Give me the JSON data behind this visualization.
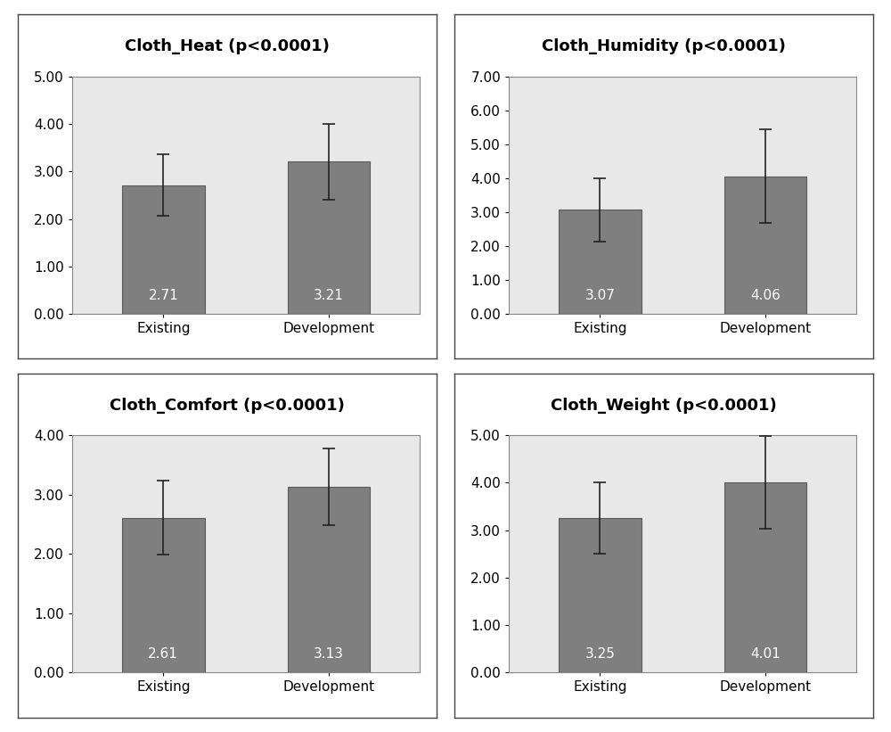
{
  "subplots": [
    {
      "title": "Cloth_Heat (p<0.0001)",
      "categories": [
        "Existing",
        "Development"
      ],
      "values": [
        2.71,
        3.21
      ],
      "errors": [
        0.65,
        0.8
      ],
      "ylim": [
        0,
        5.0
      ],
      "yticks": [
        0.0,
        1.0,
        2.0,
        3.0,
        4.0,
        5.0
      ]
    },
    {
      "title": "Cloth_Humidity (p<0.0001)",
      "categories": [
        "Existing",
        "Development"
      ],
      "values": [
        3.07,
        4.06
      ],
      "errors": [
        0.93,
        1.38
      ],
      "ylim": [
        0,
        7.0
      ],
      "yticks": [
        0.0,
        1.0,
        2.0,
        3.0,
        4.0,
        5.0,
        6.0,
        7.0
      ]
    },
    {
      "title": "Cloth_Comfort (p<0.0001)",
      "categories": [
        "Existing",
        "Development"
      ],
      "values": [
        2.61,
        3.13
      ],
      "errors": [
        0.62,
        0.65
      ],
      "ylim": [
        0,
        4.0
      ],
      "yticks": [
        0.0,
        1.0,
        2.0,
        3.0,
        4.0
      ]
    },
    {
      "title": "Cloth_Weight (p<0.0001)",
      "categories": [
        "Existing",
        "Development"
      ],
      "values": [
        3.25,
        4.01
      ],
      "errors": [
        0.75,
        0.98
      ],
      "ylim": [
        0,
        5.0
      ],
      "yticks": [
        0.0,
        1.0,
        2.0,
        3.0,
        4.0,
        5.0
      ]
    }
  ],
  "bar_color": "#7f7f7f",
  "bar_edge_color": "#5a5a5a",
  "bar_width": 0.5,
  "error_color": "#222222",
  "error_capsize": 5,
  "value_label_color": "white",
  "value_label_fontsize": 11,
  "title_fontsize": 13,
  "tick_fontsize": 11,
  "xlabel_fontsize": 11,
  "ax_background_color": "#e8e8e8",
  "panel_background_color": "#ffffff",
  "figure_background": "#ffffff"
}
